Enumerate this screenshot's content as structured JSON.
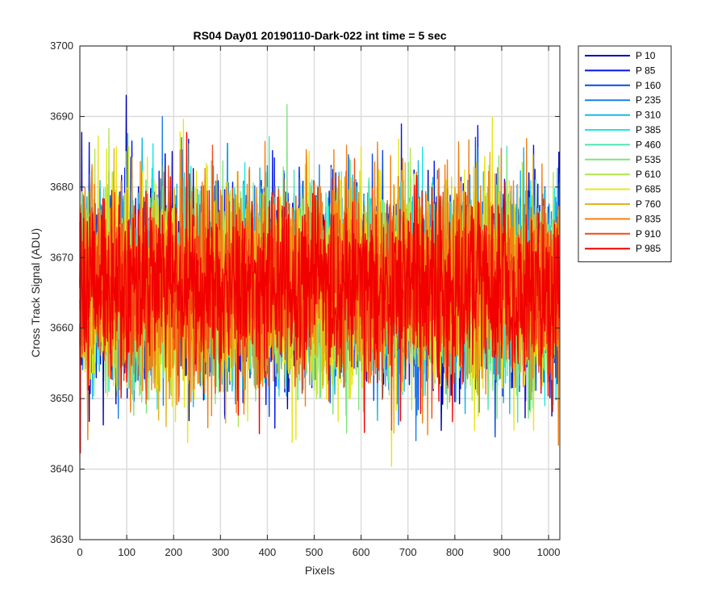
{
  "chart_data": {
    "type": "line",
    "title": "RS04 Day01 20190110-Dark-022 int time = 5 sec",
    "xlabel": "Pixels",
    "ylabel": "Cross Track Signal (ADU)",
    "xlim": [
      0,
      1024
    ],
    "ylim": [
      3630,
      3700
    ],
    "xticks": [
      0,
      100,
      200,
      300,
      400,
      500,
      600,
      700,
      800,
      900,
      1000
    ],
    "yticks": [
      3630,
      3640,
      3650,
      3660,
      3670,
      3680,
      3690,
      3700
    ],
    "grid": true,
    "legend_position": "outside-right",
    "series": [
      {
        "name": "P 10",
        "color": "#0000b3",
        "mean": 3666,
        "min": 3639,
        "max": 3693
      },
      {
        "name": "P 85",
        "color": "#0014e6",
        "mean": 3666,
        "min": 3640,
        "max": 3692
      },
      {
        "name": "P 160",
        "color": "#0a4be0",
        "mean": 3666,
        "min": 3643,
        "max": 3691
      },
      {
        "name": "P 235",
        "color": "#1a7fe6",
        "mean": 3666,
        "min": 3642,
        "max": 3690
      },
      {
        "name": "P 310",
        "color": "#1ab2e6",
        "mean": 3666,
        "min": 3643,
        "max": 3692
      },
      {
        "name": "P 385",
        "color": "#1ae6e6",
        "mean": 3666,
        "min": 3643,
        "max": 3691
      },
      {
        "name": "P 460",
        "color": "#4ce6b2",
        "mean": 3666,
        "min": 3643,
        "max": 3689
      },
      {
        "name": "P 535",
        "color": "#7fe680",
        "mean": 3666,
        "min": 3640,
        "max": 3693
      },
      {
        "name": "P 610",
        "color": "#b2e64c",
        "mean": 3666,
        "min": 3641,
        "max": 3691
      },
      {
        "name": "P 685",
        "color": "#e6e61a",
        "mean": 3666,
        "min": 3639,
        "max": 3696
      },
      {
        "name": "P 760",
        "color": "#e6b21a",
        "mean": 3666,
        "min": 3643,
        "max": 3690
      },
      {
        "name": "P 835",
        "color": "#f08014",
        "mean": 3666,
        "min": 3640,
        "max": 3696
      },
      {
        "name": "P 910",
        "color": "#f24a14",
        "mean": 3666,
        "min": 3643,
        "max": 3689
      },
      {
        "name": "P 985",
        "color": "#f20000",
        "mean": 3666,
        "min": 3639,
        "max": 3688
      }
    ]
  }
}
